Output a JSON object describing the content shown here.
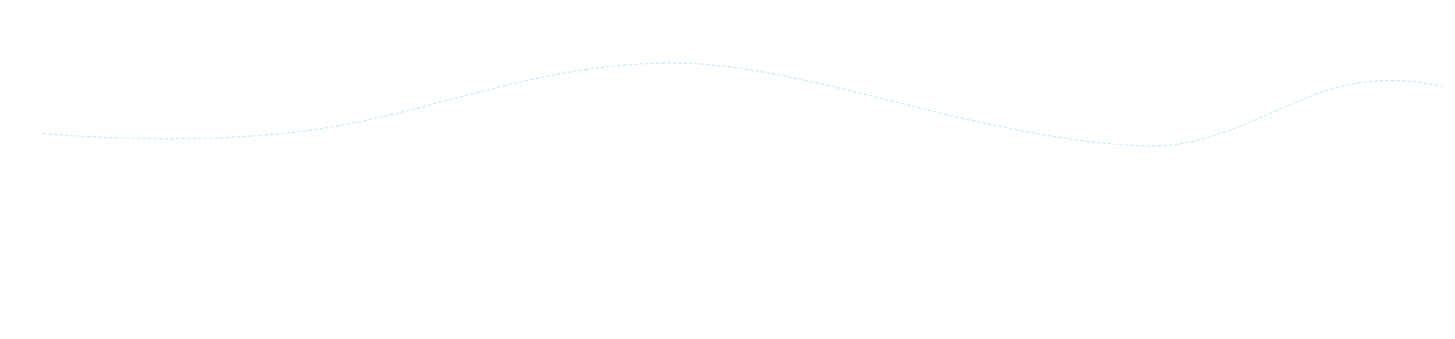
{
  "wave": {
    "line_color": "#bfe6fa",
    "background": "#ffffff",
    "line_style": "dashed"
  }
}
